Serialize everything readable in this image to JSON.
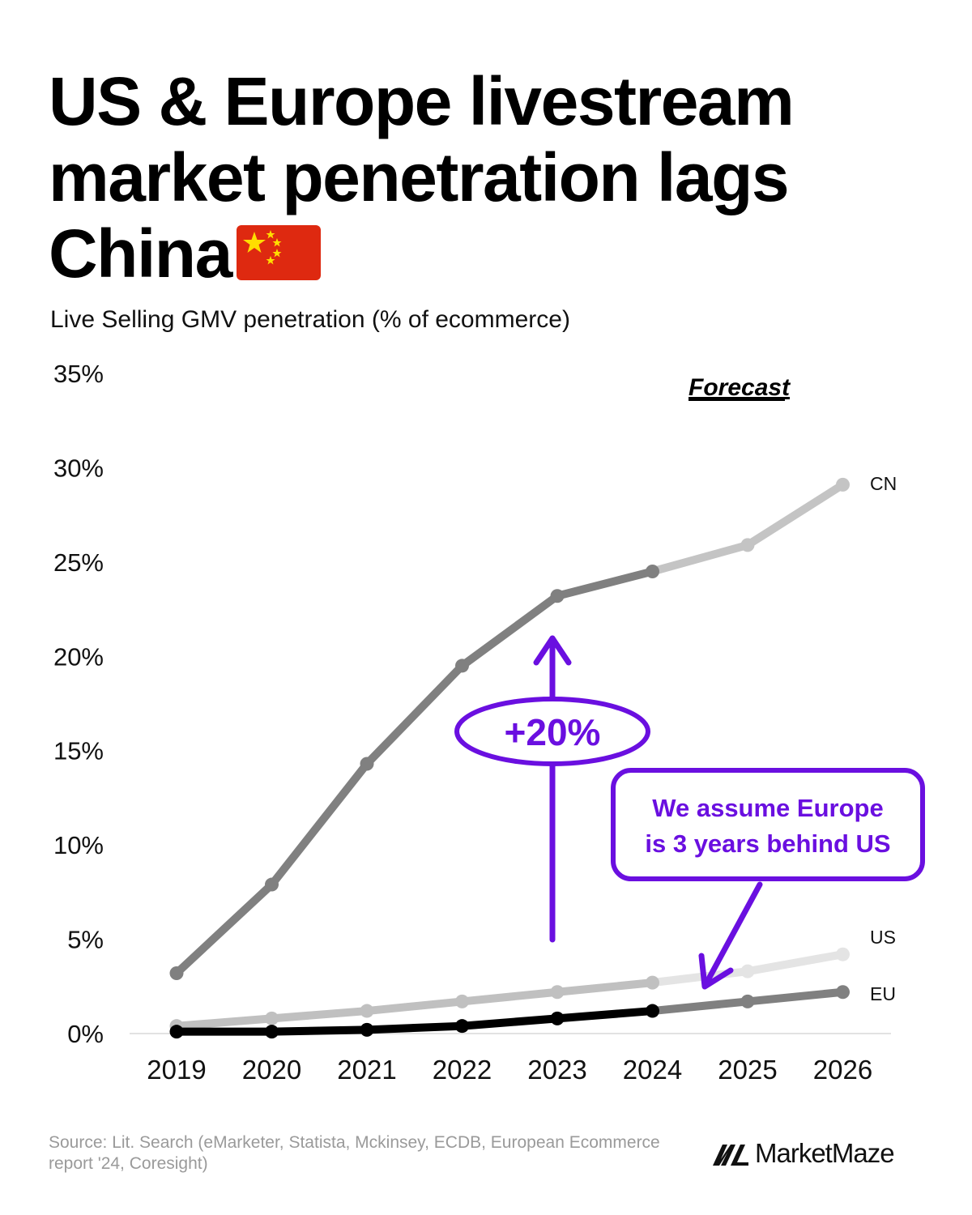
{
  "title": "US & Europe livestream market penetration lags China",
  "subtitle": "Live Selling GMV penetration (% of ecommerce)",
  "source": "Source: Lit. Search (eMarketer, Statista, Mckinsey, ECDB, European Ecommerce report '24, Coresight)",
  "brand": "MarketMaze",
  "colors": {
    "accent": "#6a0fe0",
    "cn_actual": "#808080",
    "cn_forecast": "#c4c4c4",
    "us_actual": "#c0c0c0",
    "us_forecast": "#e4e4e4",
    "eu_actual": "#000000",
    "eu_forecast": "#808080"
  },
  "annotations": {
    "forecast_label": "Forecast",
    "gap_label": "+20%",
    "callout_line1": "We assume Europe",
    "callout_line2": "is 3 years behind US"
  },
  "chart_data": {
    "type": "line",
    "title": "US & Europe livestream market penetration lags China",
    "ylabel": "Live Selling GMV penetration (% of ecommerce)",
    "xlabel": "",
    "x": [
      "2019",
      "2020",
      "2021",
      "2022",
      "2023",
      "2024",
      "2025",
      "2026"
    ],
    "ylim": [
      0,
      35
    ],
    "yticks": [
      "0%",
      "5%",
      "10%",
      "15%",
      "20%",
      "25%",
      "30%",
      "35%"
    ],
    "forecast_start_index": 5,
    "series": [
      {
        "name": "CN",
        "values": [
          3.2,
          7.9,
          14.3,
          19.5,
          23.2,
          24.5,
          25.9,
          29.1
        ]
      },
      {
        "name": "US",
        "values": [
          0.4,
          0.8,
          1.2,
          1.7,
          2.2,
          2.7,
          3.3,
          4.2
        ]
      },
      {
        "name": "EU",
        "values": [
          0.1,
          0.1,
          0.2,
          0.4,
          0.8,
          1.2,
          1.7,
          2.2
        ]
      }
    ]
  }
}
